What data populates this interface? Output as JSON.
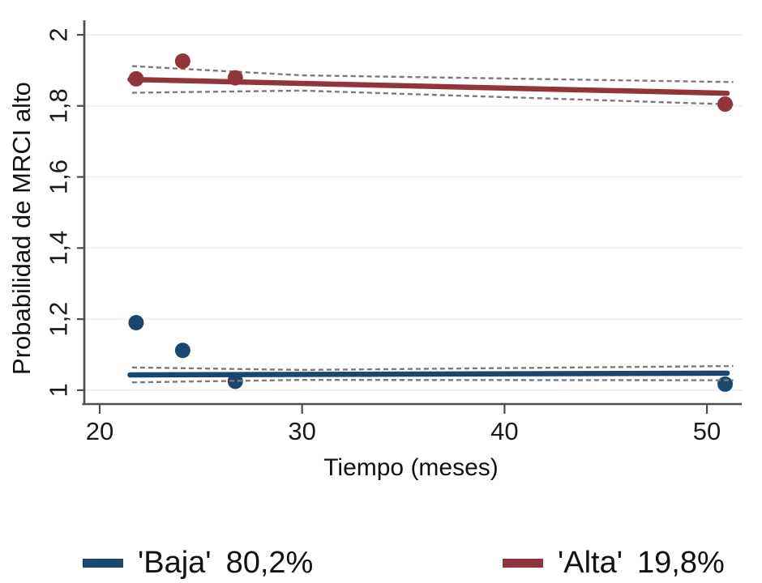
{
  "chart_data": {
    "type": "scatter",
    "title": "",
    "xlabel": "Tiempo (meses)",
    "ylabel": "Probabilidad de MRCI alto",
    "xlim": [
      19.24,
      51.72
    ],
    "ylim": [
      0.961,
      2.041
    ],
    "grid": "horizontal-light",
    "legend_position": "bottom",
    "x_ticks": [
      {
        "v": 20,
        "label": "20"
      },
      {
        "v": 30,
        "label": "30"
      },
      {
        "v": 40,
        "label": "40"
      },
      {
        "v": 50,
        "label": "50"
      }
    ],
    "y_ticks": [
      {
        "v": 2,
        "label": "2"
      },
      {
        "v": 1.8,
        "label": "1,8"
      },
      {
        "v": 1.6,
        "label": "1,6"
      },
      {
        "v": 1.4,
        "label": "1,4"
      },
      {
        "v": 1.2,
        "label": "1,2"
      },
      {
        "v": 1,
        "label": "1"
      }
    ],
    "series": [
      {
        "name": "'Baja'",
        "pct": "80,2%",
        "color": "#1A476F",
        "points": [
          [
            21.8,
            1.19
          ],
          [
            24.1,
            1.112
          ],
          [
            26.7,
            1.025
          ],
          [
            50.9,
            1.017
          ]
        ],
        "fit": [
          [
            21.5,
            1.043
          ],
          [
            51.0,
            1.048
          ]
        ],
        "ci_upper": [
          [
            21.6,
            1.064
          ],
          [
            30.0,
            1.057
          ],
          [
            51.3,
            1.068
          ]
        ],
        "ci_lower": [
          [
            21.6,
            1.022
          ],
          [
            30.0,
            1.029
          ],
          [
            51.3,
            1.028
          ]
        ]
      },
      {
        "name": "'Alta'",
        "pct": "19,8%",
        "color": "#90353B",
        "points": [
          [
            21.8,
            1.876
          ],
          [
            24.1,
            1.926
          ],
          [
            26.7,
            1.879
          ],
          [
            50.9,
            1.805
          ]
        ],
        "fit": [
          [
            21.5,
            1.8745
          ],
          [
            51.0,
            1.8355
          ]
        ],
        "ci_upper": [
          [
            21.6,
            1.912
          ],
          [
            30.0,
            1.886
          ],
          [
            51.3,
            1.867
          ]
        ],
        "ci_lower": [
          [
            21.6,
            1.837
          ],
          [
            30.0,
            1.843
          ],
          [
            51.3,
            1.804
          ]
        ]
      }
    ],
    "styles": {
      "axis_color": "#4d4d4d",
      "grid_color": "#e9eff4",
      "ci_color": "#7a7a7a",
      "ci_dash": "6 4",
      "point_radius": 9.5,
      "fit_width": 6.5
    }
  }
}
